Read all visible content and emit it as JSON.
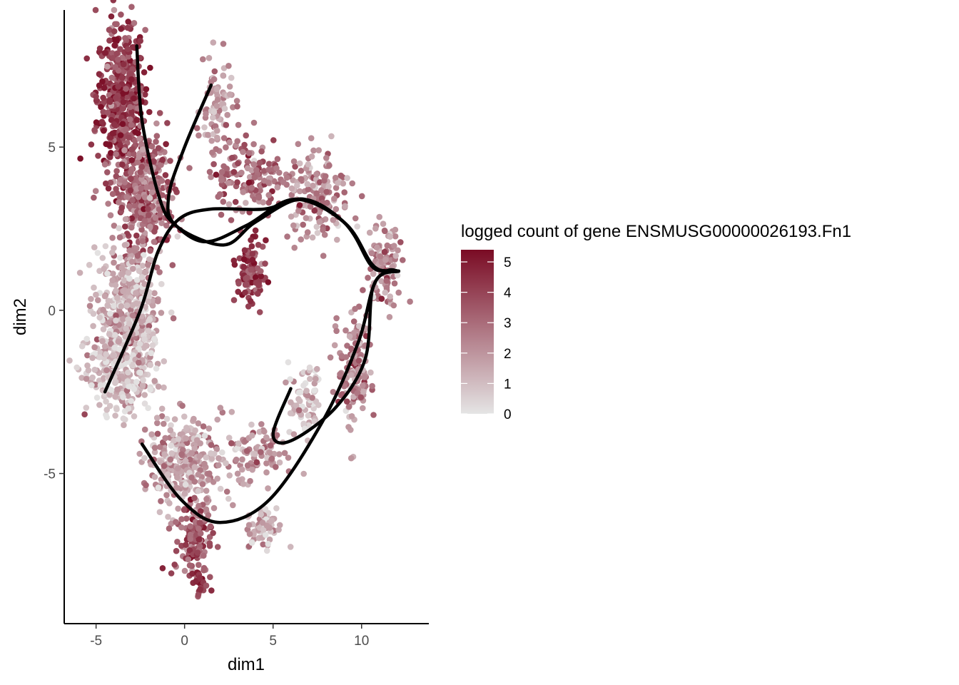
{
  "chart_data": {
    "type": "scatter",
    "xlabel": "dim1",
    "ylabel": "dim2",
    "xlim": [
      -6.8,
      13.8
    ],
    "ylim": [
      -9.6,
      9.2
    ],
    "x_ticks": [
      -5,
      0,
      5,
      10
    ],
    "y_ticks": [
      -5,
      0,
      5
    ],
    "x_tick_labels": [
      "-5",
      "0",
      "5",
      "10"
    ],
    "y_tick_labels": [
      "-5",
      "0",
      "5"
    ],
    "grid": false,
    "legend": {
      "title": "logged count of gene ENSMUSG00000026193.Fn1",
      "position": "right",
      "min": 0,
      "max": 5.4,
      "ticks": [
        0,
        1,
        2,
        3,
        4,
        5
      ],
      "tick_labels": [
        "0",
        "1",
        "2",
        "3",
        "4",
        "5"
      ],
      "low_color": "#e5e5e5",
      "high_color": "#7a0b24"
    },
    "point_colors": {
      "low": "#e3e1e1",
      "high": "#7c1028"
    },
    "clusters": [
      {
        "cx": -3.6,
        "cy": 6.5,
        "sx": 0.9,
        "sy": 1.6,
        "n": 480,
        "expr": 4.2
      },
      {
        "cx": -2.2,
        "cy": 3.5,
        "sx": 1.0,
        "sy": 1.3,
        "n": 380,
        "expr": 3.0
      },
      {
        "cx": 1.8,
        "cy": 6.2,
        "sx": 0.6,
        "sy": 0.9,
        "n": 80,
        "expr": 1.8
      },
      {
        "cx": -3.2,
        "cy": 0.0,
        "sx": 1.2,
        "sy": 1.2,
        "n": 420,
        "expr": 1.3
      },
      {
        "cx": -3.6,
        "cy": -2.0,
        "sx": 1.3,
        "sy": 0.8,
        "n": 260,
        "expr": 0.8
      },
      {
        "cx": 3.5,
        "cy": 4.2,
        "sx": 1.4,
        "sy": 0.8,
        "n": 150,
        "expr": 3.0
      },
      {
        "cx": 7.5,
        "cy": 3.5,
        "sx": 1.3,
        "sy": 0.9,
        "n": 160,
        "expr": 2.2
      },
      {
        "cx": 11.3,
        "cy": 1.3,
        "sx": 0.6,
        "sy": 0.8,
        "n": 110,
        "expr": 2.2
      },
      {
        "cx": 3.7,
        "cy": 1.2,
        "sx": 0.5,
        "sy": 0.6,
        "n": 110,
        "expr": 4.0
      },
      {
        "cx": 9.6,
        "cy": -1.8,
        "sx": 0.6,
        "sy": 1.3,
        "n": 150,
        "expr": 2.3
      },
      {
        "cx": 6.8,
        "cy": -2.8,
        "sx": 0.6,
        "sy": 0.7,
        "n": 70,
        "expr": 0.9
      },
      {
        "cx": 0.0,
        "cy": -4.6,
        "sx": 1.4,
        "sy": 0.9,
        "n": 300,
        "expr": 1.6
      },
      {
        "cx": 4.0,
        "cy": -4.4,
        "sx": 1.2,
        "sy": 0.6,
        "n": 100,
        "expr": 1.7
      },
      {
        "cx": 0.5,
        "cy": -7.0,
        "sx": 0.7,
        "sy": 0.8,
        "n": 120,
        "expr": 3.6
      },
      {
        "cx": 4.5,
        "cy": -6.6,
        "sx": 0.7,
        "sy": 0.4,
        "n": 70,
        "expr": 1.2
      },
      {
        "cx": 0.9,
        "cy": -8.4,
        "sx": 0.3,
        "sy": 0.3,
        "n": 30,
        "expr": 4.8
      }
    ],
    "curves": [
      {
        "points": [
          [
            -2.7,
            8.1
          ],
          [
            -2.4,
            5.8
          ],
          [
            -1.4,
            3.4
          ],
          [
            -0.5,
            2.6
          ],
          [
            1.2,
            2.1
          ],
          [
            3.5,
            2.6
          ],
          [
            6.2,
            3.4
          ],
          [
            9.0,
            2.7
          ],
          [
            10.5,
            1.4
          ],
          [
            11.3,
            1.2
          ],
          [
            12.1,
            1.2
          ]
        ]
      },
      {
        "points": [
          [
            1.5,
            6.9
          ],
          [
            0.0,
            5.0
          ],
          [
            -0.9,
            3.5
          ],
          [
            -0.5,
            2.6
          ],
          [
            2.2,
            2.0
          ],
          [
            4.0,
            2.7
          ],
          [
            6.6,
            3.4
          ],
          [
            9.0,
            2.7
          ],
          [
            10.6,
            1.4
          ],
          [
            11.5,
            1.2
          ],
          [
            12.1,
            1.2
          ]
        ]
      },
      {
        "points": [
          [
            -4.5,
            -2.5
          ],
          [
            -2.5,
            0.0
          ],
          [
            -1.5,
            1.8
          ],
          [
            -0.3,
            2.8
          ],
          [
            1.5,
            3.1
          ],
          [
            4.5,
            3.1
          ],
          [
            6.8,
            3.4
          ],
          [
            9.2,
            2.6
          ],
          [
            10.6,
            1.4
          ],
          [
            11.5,
            1.2
          ],
          [
            12.1,
            1.2
          ]
        ]
      },
      {
        "points": [
          [
            6.0,
            -2.4
          ],
          [
            5.0,
            -3.8
          ],
          [
            6.0,
            -4.0
          ],
          [
            8.5,
            -3.0
          ],
          [
            10.2,
            -1.5
          ],
          [
            10.6,
            0.6
          ],
          [
            11.4,
            1.2
          ],
          [
            12.1,
            1.2
          ]
        ]
      },
      {
        "points": [
          [
            -2.4,
            -4.1
          ],
          [
            -0.2,
            -5.8
          ],
          [
            2.0,
            -6.5
          ],
          [
            4.8,
            -5.8
          ],
          [
            7.8,
            -3.4
          ],
          [
            9.8,
            -1.0
          ],
          [
            10.8,
            0.9
          ],
          [
            12.1,
            1.2
          ]
        ]
      }
    ]
  }
}
